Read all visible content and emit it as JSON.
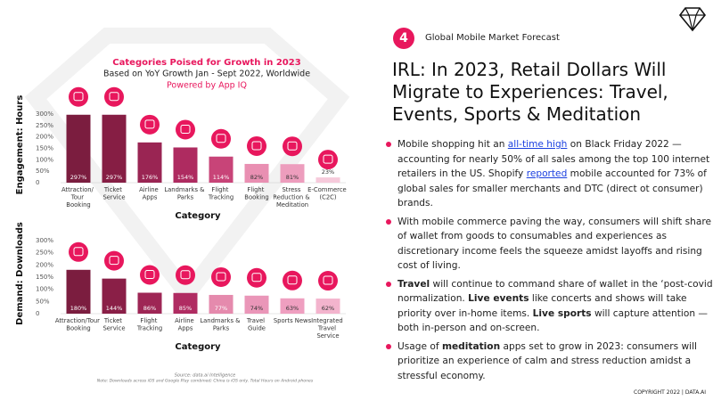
{
  "slide": {
    "number": "4",
    "section": "Global Mobile Market Forecast",
    "heading": "IRL: In 2023, Retail Dollars Will Migrate to Experiences: Travel, Events, Sports & Meditation",
    "bullets": [
      [
        {
          "text": "Mobile shopping hit an "
        },
        {
          "text": "all-time high",
          "style": "link"
        },
        {
          "text": " on Black Friday 2022 — accounting for nearly 50% of all sales among the top 100 internet retailers in the US. Shopify "
        },
        {
          "text": "reported",
          "style": "link"
        },
        {
          "text": " mobile accounted for 73% of global sales for smaller merchants and DTC (direct ot consumer) brands."
        }
      ],
      [
        {
          "text": "With mobile commerce paving the way, consumers will shift share of wallet from goods to consumables and experiences as discretionary income feels the squeeze amidst layoffs and rising cost of living."
        }
      ],
      [
        {
          "text": "Travel",
          "style": "bold"
        },
        {
          "text": " will continue to command share of wallet in the ‘post-covid’ normalization. "
        },
        {
          "text": "Live events",
          "style": "bold"
        },
        {
          "text": " like concerts and shows will take priority over in-home items. "
        },
        {
          "text": "Live sports",
          "style": "bold"
        },
        {
          "text": " will capture attention — both in-person and on-screen."
        }
      ],
      [
        {
          "text": "Usage of "
        },
        {
          "text": "meditation",
          "style": "bold"
        },
        {
          "text": " apps set to grow in 2023: consumers will prioritize an experience of calm and stress reduction amidst a stressful economy."
        }
      ]
    ],
    "source": "Source: data.ai Intelligence",
    "note": "Note: Downloads across iOS and Google Play combined; China is iOS only. Total Hours on Android phones",
    "copyright": "COPYRIGHT 2022 | DATA.AI"
  },
  "chart_data": [
    {
      "type": "bar",
      "title": "Categories Poised for Growth in 2023",
      "subtitle": "Based on YoY Growth Jan - Sept 2022, Worldwide",
      "caption": "Powered by App IQ",
      "ylabel": "Engagement: Hours",
      "xlabel": "Category",
      "categories": [
        "Attraction/ Tour Booking",
        "Ticket Service",
        "Airline Apps",
        "Landmarks & Parks",
        "Flight Tracking",
        "Flight Booking",
        "Stress Reduction & Meditation",
        "E-Commerce (C2C)"
      ],
      "values": [
        297,
        297,
        176,
        154,
        114,
        82,
        81,
        23
      ],
      "value_labels": [
        "297%",
        "297%",
        "176%",
        "154%",
        "114%",
        "82%",
        "81%",
        "23%"
      ],
      "colors": [
        "#7b1d3f",
        "#861e44",
        "#9a2553",
        "#ae2b60",
        "#c84478",
        "#e98fb2",
        "#ed9dbd",
        "#f6cadb"
      ],
      "ylim": [
        0,
        300
      ],
      "yticks": [
        0,
        {
          "value": 50,
          "label": "50%"
        },
        {
          "value": 100,
          "label": "100%"
        },
        {
          "value": 150,
          "label": "150%"
        },
        {
          "value": 200,
          "label": "200%"
        },
        {
          "value": 250,
          "label": "250%"
        },
        {
          "value": 300,
          "label": "300%"
        }
      ],
      "grid": false
    },
    {
      "type": "bar",
      "ylabel": "Demand: Downloads",
      "xlabel": "Category",
      "categories": [
        "Attraction/Tour Booking",
        "Ticket Service",
        "Flight Tracking",
        "Airline Apps",
        "Landmarks & Parks",
        "Travel Guide",
        "Sports News",
        "Integrated Travel Service"
      ],
      "values": [
        180,
        144,
        86,
        85,
        77,
        74,
        63,
        62
      ],
      "value_labels": [
        "180%",
        "144%",
        "86%",
        "85%",
        "77%",
        "74%",
        "63%",
        "62%"
      ],
      "colors": [
        "#7b1d3f",
        "#8a1f47",
        "#9e2655",
        "#b02c62",
        "#e58aad",
        "#ea96b8",
        "#ef9fc0",
        "#f3b4cd"
      ],
      "ylim": [
        0,
        300
      ],
      "yticks": [
        0,
        {
          "value": 50,
          "label": "50%"
        },
        {
          "value": 100,
          "label": "100%"
        },
        {
          "value": 150,
          "label": "150%"
        },
        {
          "value": 200,
          "label": "200%"
        },
        {
          "value": 250,
          "label": "250%"
        },
        {
          "value": 300,
          "label": "300%"
        }
      ],
      "grid": false
    }
  ]
}
